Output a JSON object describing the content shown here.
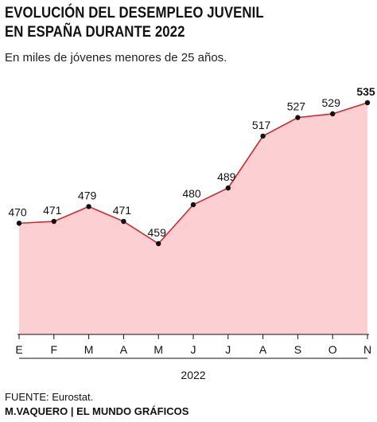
{
  "header": {
    "title_line1": "EVOLUCIÓN DEL DESEMPLEO JUVENIL",
    "title_line2": "EN ESPAÑA DURANTE 2022",
    "subtitle": "En miles de jóvenes menores de  25 años."
  },
  "footer": {
    "source": "FUENTE: Eurostat.",
    "credit": "M.VAQUERO | EL MUNDO GRÁFICOS"
  },
  "chart_data": {
    "type": "area",
    "categories": [
      "E",
      "F",
      "M",
      "A",
      "M",
      "J",
      "J",
      "A",
      "S",
      "O",
      "N"
    ],
    "values": [
      470,
      471,
      479,
      471,
      459,
      480,
      489,
      517,
      527,
      529,
      535
    ],
    "data_labels": [
      "470",
      "471",
      "479",
      "471",
      "459",
      "480",
      "489",
      "517",
      "527",
      "529",
      "535"
    ],
    "highlight_last_label": true,
    "xlabel": "2022",
    "ylabel": "",
    "ylim": [
      420,
      540
    ],
    "grid": false,
    "colors": {
      "line": "#d7262b",
      "fill": "#fcd0d2",
      "points": "#111111",
      "axis": "#111111"
    }
  }
}
